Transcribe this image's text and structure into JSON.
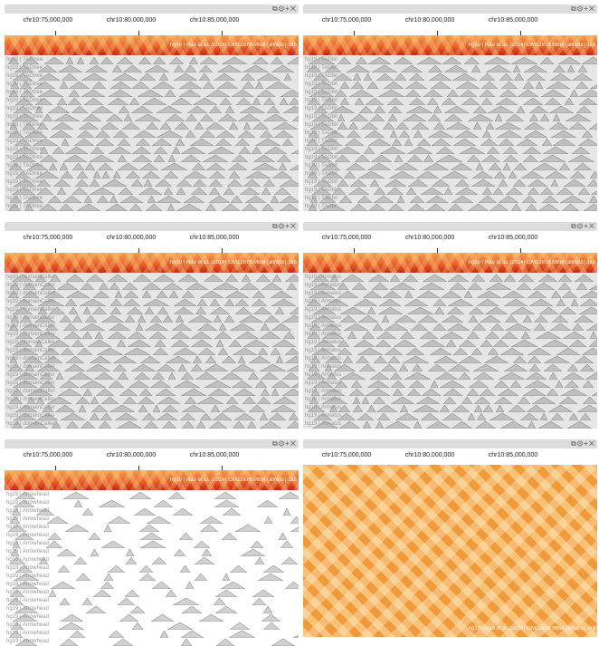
{
  "controls": {
    "copy_icon": "⧉",
    "gear_icon": "⚙",
    "plus_icon": "+",
    "close_icon": "✕"
  },
  "axis_ticks": [
    "chr10:75,000,000",
    "chr10:80,000,000",
    "chr10:85,000,000"
  ],
  "heatmap_label": "hg19 | Rao et al. (2014) GM12878 Mbol (allreps) 1kb",
  "views": [
    {
      "id": "view-tl",
      "track_label": "hg19 | TADtree",
      "rows": 19
    },
    {
      "id": "view-tr",
      "track_label": "hg19 | TADbit",
      "rows": 19
    },
    {
      "id": "view-ml",
      "track_label": "hg19 | domainCaller",
      "rows": 19
    },
    {
      "id": "view-mr",
      "track_label": "hg19 | Armatus",
      "rows": 19
    },
    {
      "id": "view-bl",
      "track_label": "hg19 | Arrowhead",
      "rows": 19
    }
  ]
}
